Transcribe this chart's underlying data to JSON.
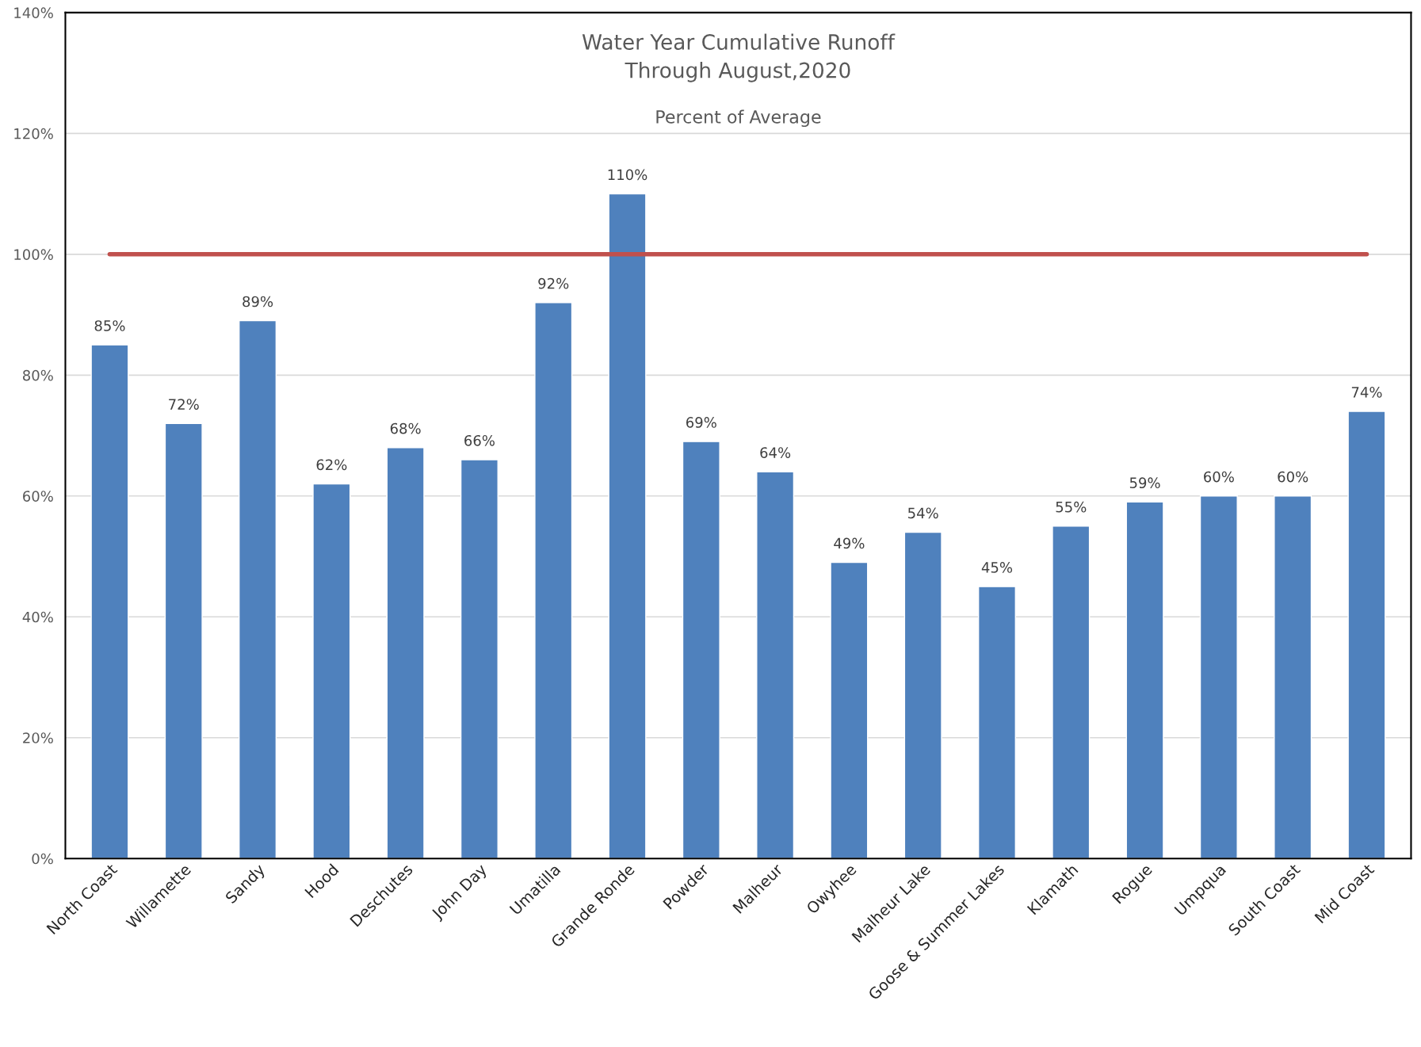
{
  "chart_data": {
    "type": "bar",
    "title": "Water Year Cumulative Runoff\nThrough August,2020",
    "subtitle": "Percent of Average",
    "categories": [
      "North Coast",
      "Willamette",
      "Sandy",
      "Hood",
      "Deschutes",
      "John Day",
      "Umatilla",
      "Grande Ronde",
      "Powder",
      "Malheur",
      "Owyhee",
      "Malheur Lake",
      "Goose & Summer Lakes",
      "Klamath",
      "Rogue",
      "Umpqua",
      "South Coast",
      "Mid Coast"
    ],
    "values": [
      85,
      72,
      89,
      62,
      68,
      66,
      92,
      110,
      69,
      64,
      49,
      54,
      45,
      55,
      59,
      60,
      60,
      74
    ],
    "value_labels": [
      "85%",
      "72%",
      "89%",
      "62%",
      "68%",
      "66%",
      "92%",
      "110%",
      "69%",
      "64%",
      "49%",
      "54%",
      "45%",
      "55%",
      "59%",
      "60%",
      "60%",
      "74%"
    ],
    "color": "#4f81bd",
    "ylim": [
      0,
      140
    ],
    "yticks": [
      {
        "value": 0,
        "label": "0%"
      },
      {
        "value": 20,
        "label": "20%"
      },
      {
        "value": 40,
        "label": "40%"
      },
      {
        "value": 60,
        "label": "60%"
      },
      {
        "value": 80,
        "label": "80%"
      },
      {
        "value": 100,
        "label": "100%"
      },
      {
        "value": 120,
        "label": "120%"
      },
      {
        "value": 140,
        "label": "140%"
      }
    ],
    "ref_lines": [
      {
        "axis": "y",
        "value": 100,
        "color": "#c0504d"
      }
    ],
    "grid": "y",
    "legend": false
  }
}
